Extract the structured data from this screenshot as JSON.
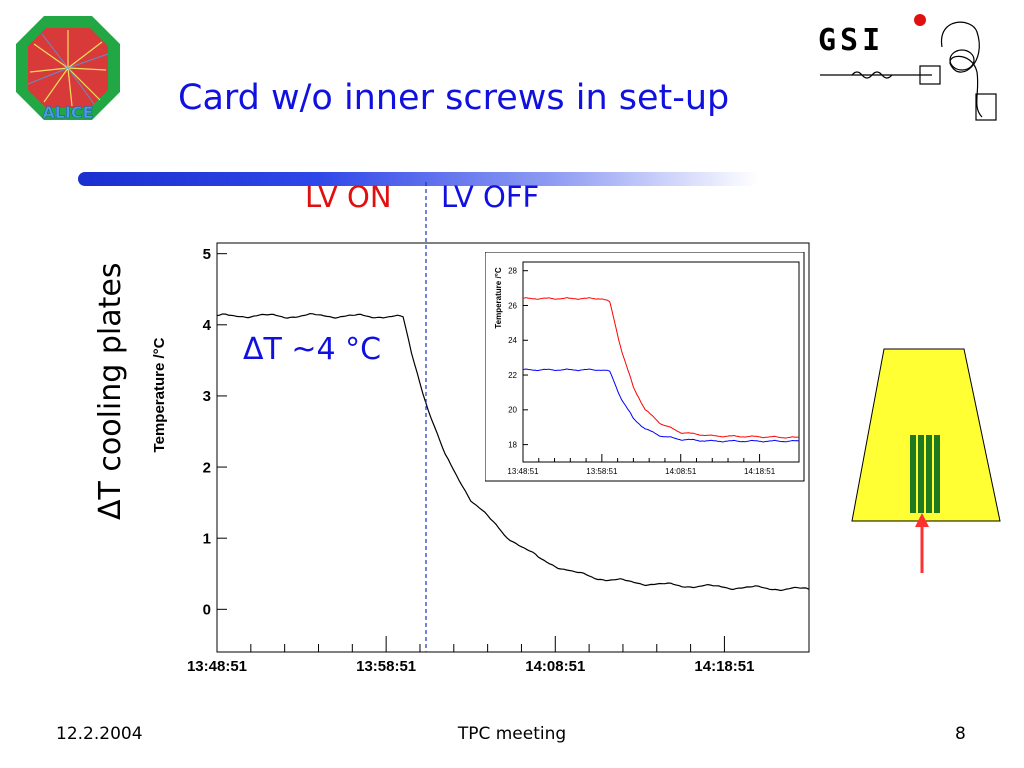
{
  "slide": {
    "title": "Card w/o inner screws in set-up",
    "lv_on_label": "LV ON",
    "lv_off_label": "LV OFF",
    "side_label": "ΔT cooling plates",
    "delta_annotation": "ΔT ~4 °C",
    "logos": {
      "left_text": "ALICE",
      "right_text": "GSI"
    }
  },
  "footer": {
    "date": "12.2.2004",
    "center": "TPC meeting",
    "page": "8"
  },
  "colors": {
    "title": "#1010e0",
    "lv_on": "#e01010",
    "lv_off": "#1010e0",
    "card_fill": "#ffff33",
    "card_strips": "#1f7a1f",
    "arrow": "#ff3030"
  },
  "chart_data": [
    {
      "type": "line",
      "ylabel": "Temperature /°C",
      "x_ticks": [
        "13:48:51",
        "13:58:51",
        "14:08:51",
        "14:18:51"
      ],
      "xlim": [
        "13:48:51",
        "14:23:51"
      ],
      "ylim": [
        -0.6,
        5.15
      ],
      "y_ticks": [
        0,
        1,
        2,
        3,
        4,
        5
      ],
      "marker_time": "13:59:51",
      "series": [
        {
          "color": "#000000",
          "x": [
            "13:48:51",
            "13:50:51",
            "13:52:51",
            "13:54:51",
            "13:56:51",
            "13:58:51",
            "13:59:51",
            "14:00:21",
            "14:01:21",
            "14:02:21",
            "14:03:51",
            "14:05:51",
            "14:07:51",
            "14:09:51",
            "14:11:51",
            "14:14:51",
            "14:17:51",
            "14:20:51",
            "14:23:51"
          ],
          "values": [
            4.12,
            4.13,
            4.12,
            4.13,
            4.12,
            4.12,
            4.1,
            3.6,
            2.8,
            2.15,
            1.55,
            1.05,
            0.72,
            0.52,
            0.42,
            0.35,
            0.32,
            0.3,
            0.28
          ]
        }
      ]
    },
    {
      "type": "line",
      "ylabel": "Temperature /°C",
      "x_ticks": [
        "13:48:51",
        "13:58:51",
        "14:08:51",
        "14:18:51"
      ],
      "xlim": [
        "13:48:51",
        "14:23:51"
      ],
      "ylim": [
        17,
        28.5
      ],
      "y_ticks": [
        18,
        20,
        22,
        24,
        26,
        28
      ],
      "series": [
        {
          "color": "#ff0000",
          "x": [
            "13:48:51",
            "13:56:51",
            "13:58:51",
            "13:59:51",
            "14:01:21",
            "14:02:51",
            "14:04:21",
            "14:06:21",
            "14:08:51",
            "14:12:51",
            "14:18:51",
            "14:23:51"
          ],
          "values": [
            26.4,
            26.4,
            26.4,
            26.2,
            23.4,
            21.3,
            20.0,
            19.2,
            18.7,
            18.5,
            18.45,
            18.4
          ]
        },
        {
          "color": "#0000ff",
          "x": [
            "13:48:51",
            "13:56:51",
            "13:58:51",
            "13:59:51",
            "14:01:21",
            "14:02:51",
            "14:04:21",
            "14:06:21",
            "14:08:51",
            "14:12:51",
            "14:18:51",
            "14:23:51"
          ],
          "values": [
            22.3,
            22.3,
            22.3,
            22.2,
            20.6,
            19.5,
            18.9,
            18.5,
            18.3,
            18.2,
            18.2,
            18.2
          ]
        }
      ]
    }
  ]
}
